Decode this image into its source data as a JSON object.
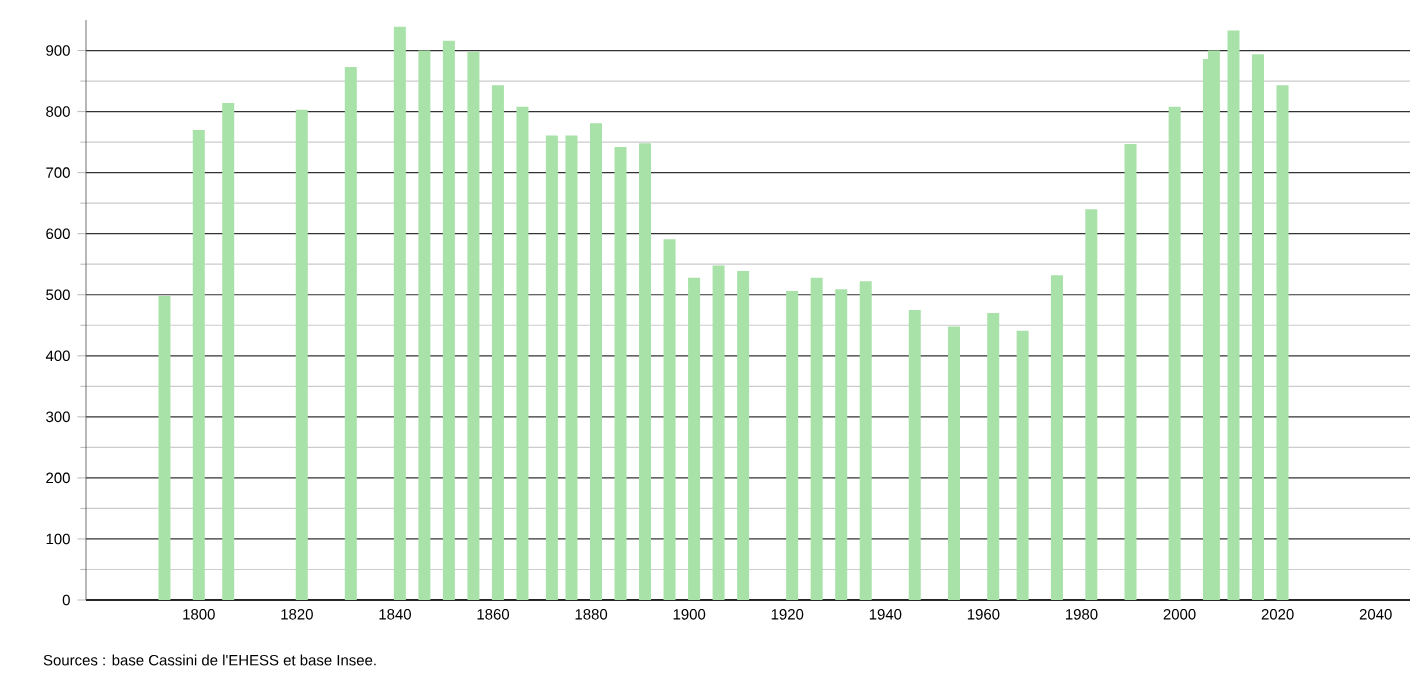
{
  "chart_data": {
    "type": "bar",
    "x": [
      1793,
      1800,
      1806,
      1821,
      1831,
      1841,
      1846,
      1851,
      1856,
      1861,
      1866,
      1872,
      1876,
      1881,
      1886,
      1891,
      1896,
      1901,
      1906,
      1911,
      1921,
      1926,
      1931,
      1936,
      1946,
      1954,
      1962,
      1968,
      1975,
      1982,
      1990,
      1999,
      2006,
      2007,
      2011,
      2016,
      2021
    ],
    "values": [
      498,
      770,
      814,
      803,
      873,
      939,
      900,
      916,
      898,
      843,
      808,
      761,
      761,
      781,
      742,
      748,
      591,
      528,
      548,
      539,
      506,
      528,
      509,
      522,
      475,
      448,
      470,
      441,
      532,
      640,
      747,
      808,
      886,
      900,
      933,
      894,
      843
    ],
    "color": "#a8e2a8",
    "xlim": [
      1777,
      2047
    ],
    "ylim": [
      0,
      950
    ],
    "xticks": [
      1800,
      1820,
      1840,
      1860,
      1880,
      1900,
      1920,
      1940,
      1960,
      1980,
      2000,
      2020,
      2040
    ],
    "yticks": [
      0,
      100,
      200,
      300,
      400,
      500,
      600,
      700,
      800,
      900
    ],
    "grid": "y",
    "annotations": [
      "Sources : base Cassini de l'EHESS et base Insee."
    ]
  }
}
